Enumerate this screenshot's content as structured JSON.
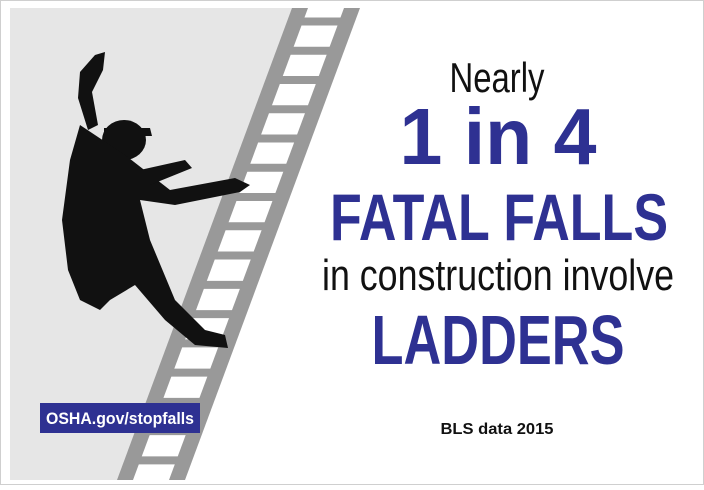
{
  "headline": {
    "intro": "Nearly",
    "ratio": "1 in 4",
    "subject": "FATAL FALLS",
    "context": "in construction involve",
    "object": "LADDERS"
  },
  "source": "BLS data 2015",
  "link": "OSHA.gov/stopfalls"
}
